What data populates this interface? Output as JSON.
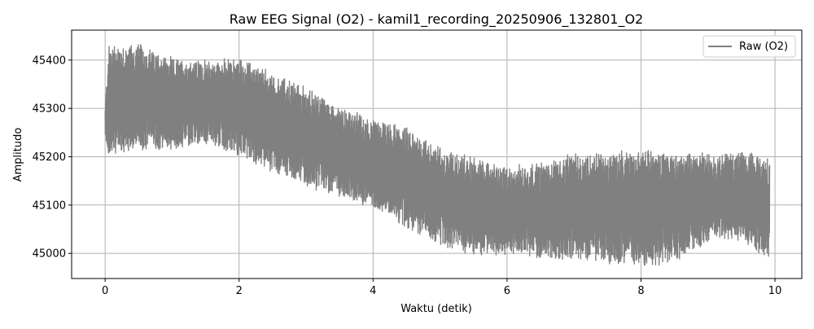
{
  "chart_data": {
    "type": "line",
    "title": "Raw EEG Signal (O2) - kamil1_recording_20250906_132801_O2",
    "xlabel": "Waktu (detik)",
    "ylabel": "Amplitudo",
    "xlim": [
      -0.5,
      10.4
    ],
    "ylim": [
      44948,
      45462
    ],
    "xticks": [
      0,
      2,
      4,
      6,
      8,
      10
    ],
    "yticks": [
      45000,
      45100,
      45200,
      45300,
      45400
    ],
    "xtick_labels": [
      "0",
      "2",
      "4",
      "6",
      "8",
      "10"
    ],
    "ytick_labels": [
      "45000",
      "45100",
      "45200",
      "45300",
      "45400"
    ],
    "grid": true,
    "legend_position": "top-right",
    "series": [
      {
        "name": "Raw (O2)",
        "color": "#808080",
        "x_range": [
          0,
          9.92
        ],
        "envelope": {
          "x": [
            0,
            0.05,
            0.5,
            1.0,
            1.5,
            2.0,
            2.5,
            3.0,
            3.5,
            4.0,
            4.5,
            5.0,
            5.5,
            6.0,
            6.5,
            7.0,
            7.5,
            8.0,
            8.5,
            9.0,
            9.5,
            9.92
          ],
          "upper": [
            45300,
            45430,
            45430,
            45400,
            45395,
            45400,
            45370,
            45340,
            45300,
            45275,
            45255,
            45215,
            45195,
            45175,
            45185,
            45200,
            45205,
            45210,
            45205,
            45205,
            45205,
            45195
          ],
          "lower": [
            45240,
            45205,
            45215,
            45220,
            45230,
            45205,
            45175,
            45140,
            45120,
            45100,
            45060,
            45020,
            45000,
            45000,
            44995,
            44990,
            44985,
            44975,
            44985,
            45030,
            45030,
            44990
          ]
        }
      }
    ]
  }
}
